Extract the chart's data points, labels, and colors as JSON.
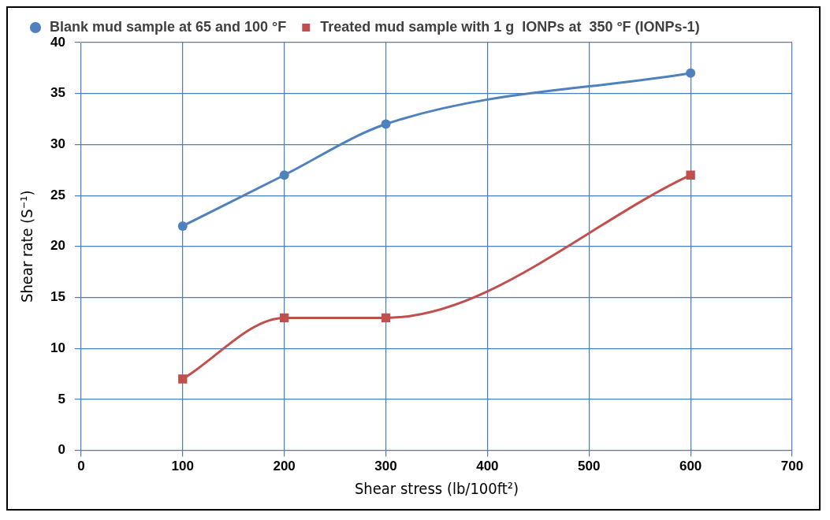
{
  "chart_data": {
    "type": "line",
    "xlabel": "Shear stress (lb/100ft²)",
    "ylabel": "Shear rate (S⁻¹)",
    "xlim": [
      0,
      700
    ],
    "xticks": [
      0,
      100,
      200,
      300,
      400,
      500,
      600,
      700
    ],
    "ylim": [
      0,
      40
    ],
    "yticks": [
      0,
      5,
      10,
      15,
      20,
      25,
      30,
      35,
      40
    ],
    "grid": true,
    "legend": "top",
    "series": [
      {
        "name": "Blank mud sample at 65 and 100 °F",
        "color": "#4f81bd",
        "marker": "circle",
        "x": [
          100,
          200,
          300,
          600
        ],
        "values": [
          22,
          27,
          32,
          37
        ]
      },
      {
        "name": "Treated mud sample with 1 g  IONPs at  350 °F (IONPs-1)",
        "color": "#c0504d",
        "marker": "square",
        "x": [
          100,
          200,
          300,
          600
        ],
        "values": [
          7,
          13,
          13,
          27
        ]
      }
    ]
  }
}
